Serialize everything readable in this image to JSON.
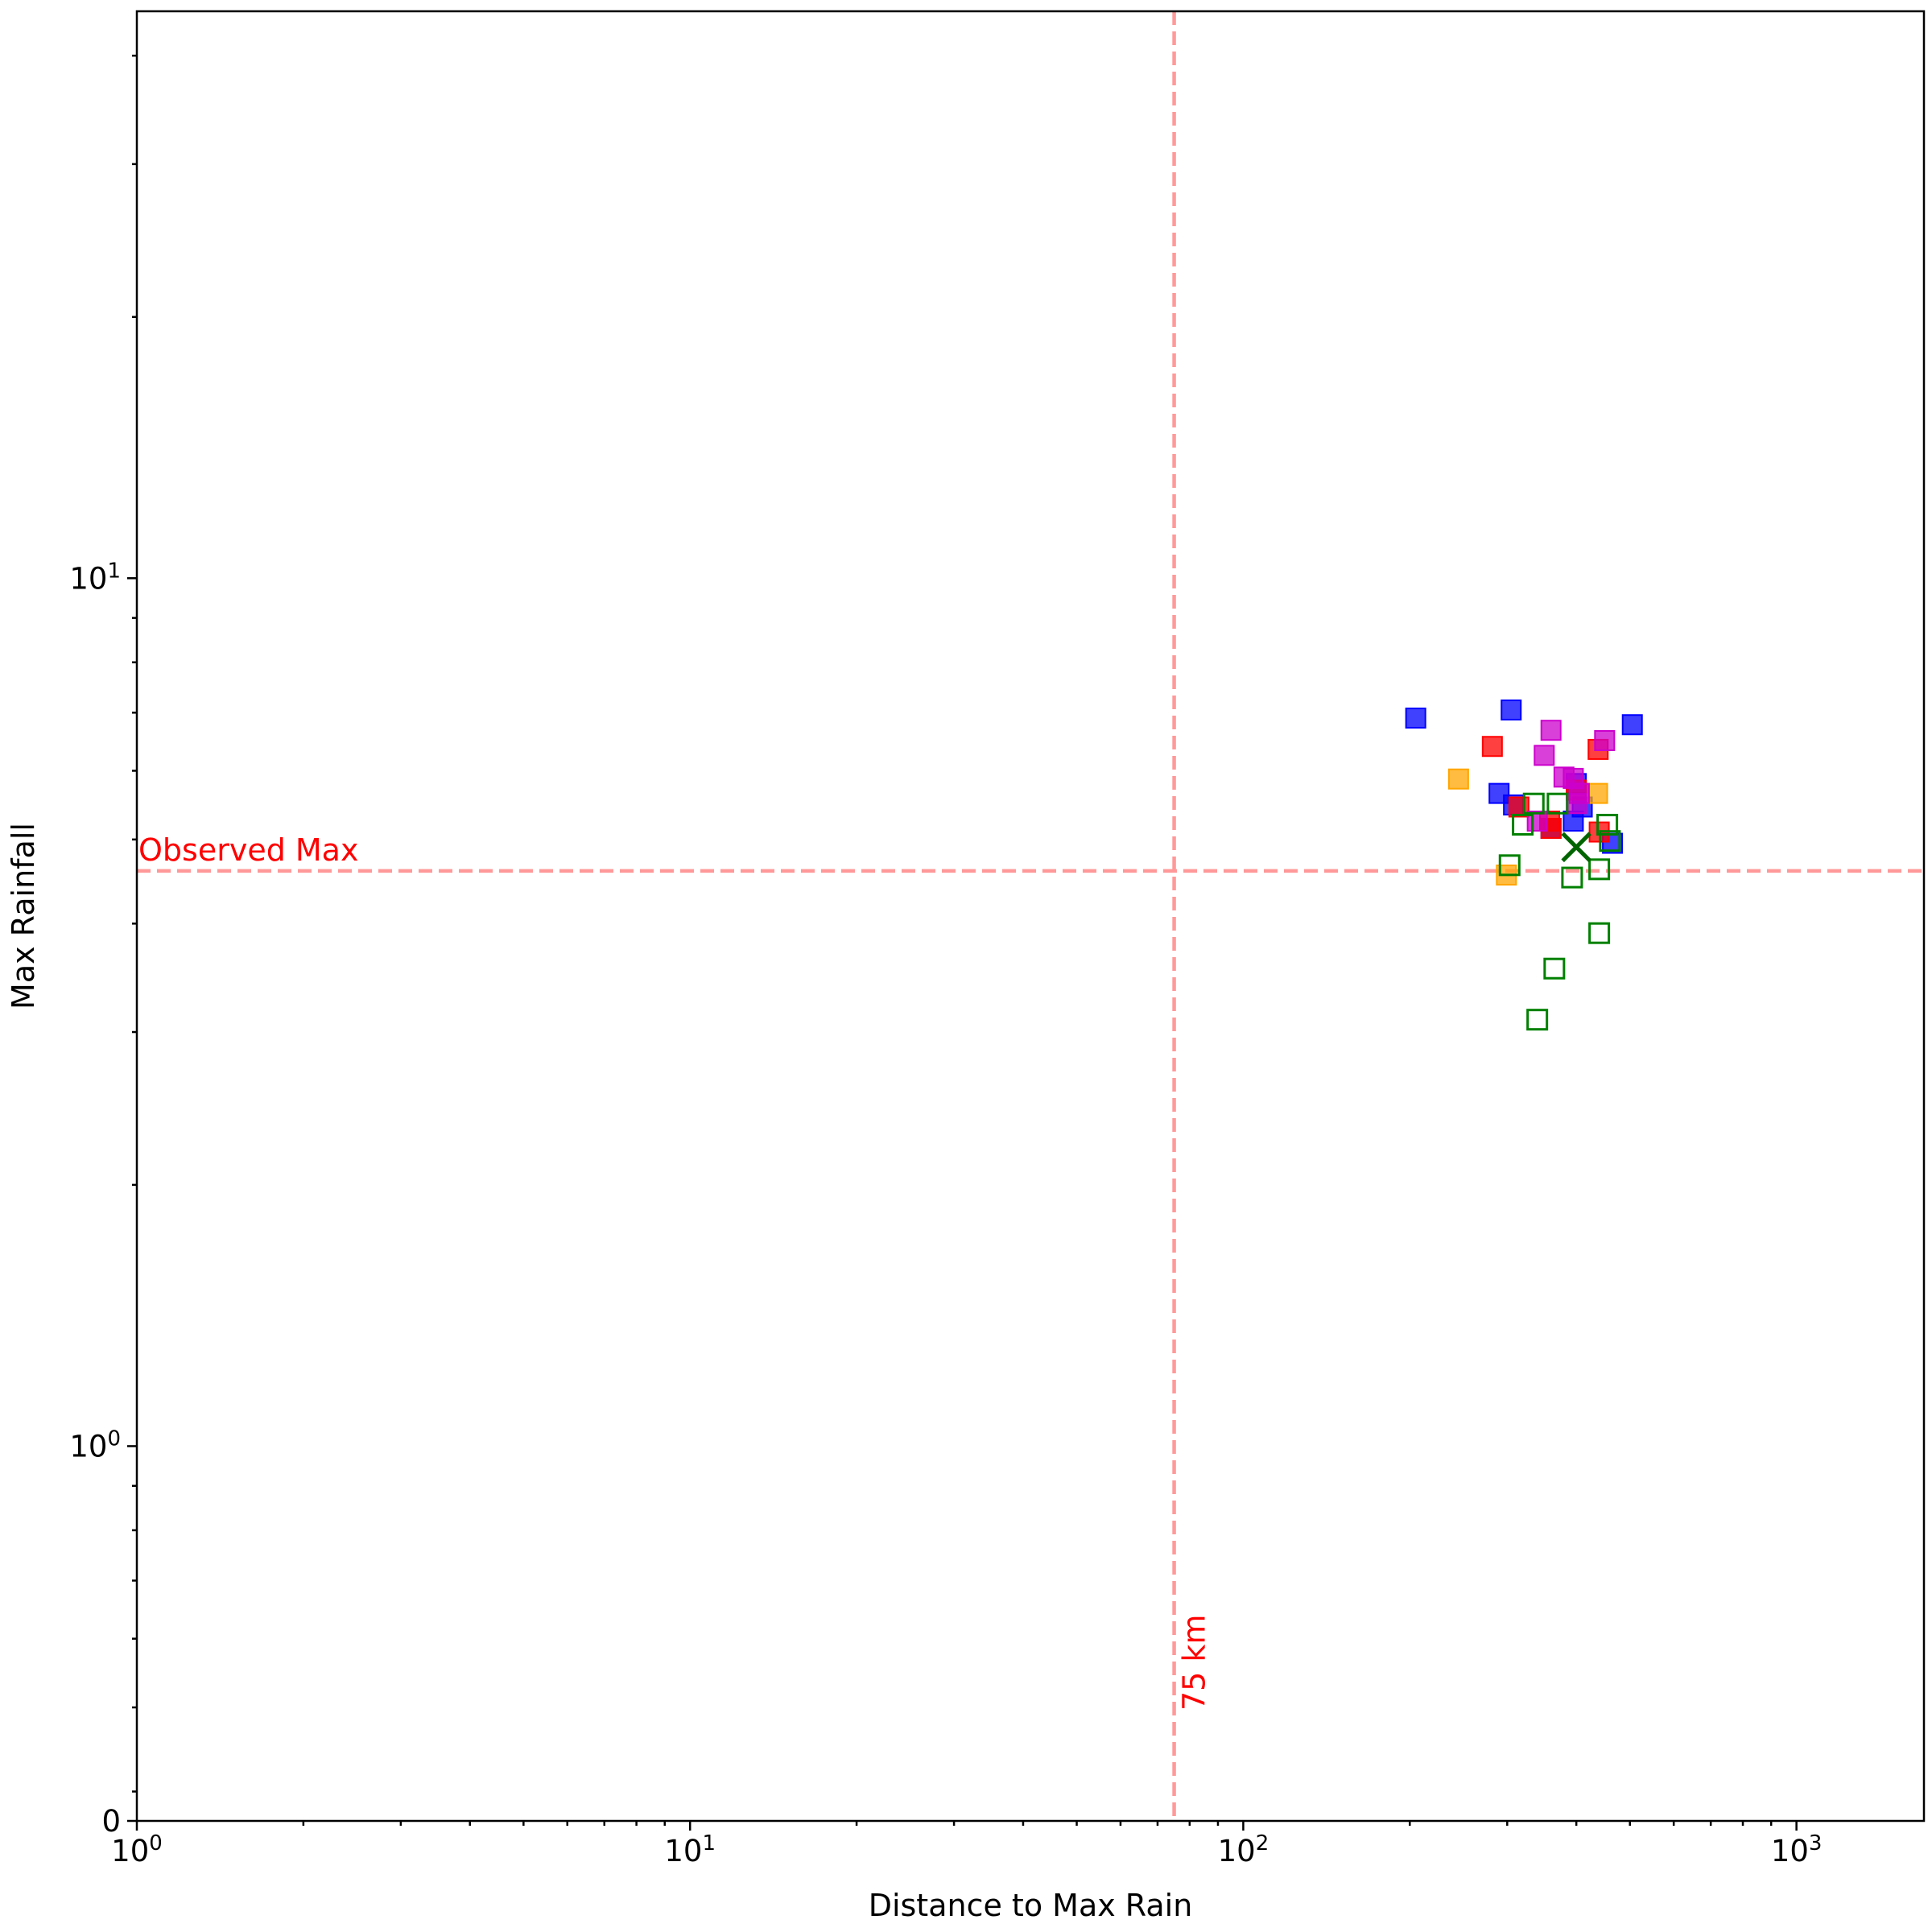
{
  "chart_data": {
    "type": "scatter",
    "xlabel": "Distance to Max Rain",
    "ylabel": "Max Rainfall",
    "xscale": "log",
    "yscale": "log",
    "xlim": [
      1,
      1700
    ],
    "ylim": [
      0.37,
      45
    ],
    "grid": false,
    "x_ticks": [
      {
        "value": 1,
        "base": "10",
        "exp": "0"
      },
      {
        "value": 10,
        "base": "10",
        "exp": "1"
      },
      {
        "value": 100,
        "base": "10",
        "exp": "2"
      },
      {
        "value": 1000,
        "base": "10",
        "exp": "3"
      }
    ],
    "y_ticks": [
      {
        "value": 1,
        "base": "10",
        "exp": "0"
      },
      {
        "value": 10,
        "base": "10",
        "exp": "1"
      }
    ],
    "y_zero_label": "0",
    "reference_lines": {
      "vertical": {
        "x": 75,
        "label": "75 km",
        "color": "#ff0000"
      },
      "horizontal": {
        "y": 4.6,
        "label": "Observed Max",
        "color": "#ff0000"
      }
    },
    "series": [
      {
        "marker": "filled-square",
        "color": "#0000ff",
        "points": [
          [
            205,
            6.9
          ],
          [
            305,
            7.05
          ],
          [
            505,
            6.78
          ],
          [
            308,
            5.48
          ],
          [
            465,
            4.95
          ],
          [
            290,
            5.65
          ],
          [
            395,
            5.25
          ],
          [
            410,
            5.45
          ],
          [
            400,
            5.8
          ],
          [
            360,
            5.15
          ]
        ]
      },
      {
        "marker": "filled-square",
        "color": "#ff0000",
        "points": [
          [
            282,
            6.4
          ],
          [
            438,
            6.35
          ],
          [
            360,
            5.15
          ],
          [
            358,
            5.25
          ],
          [
            315,
            5.45
          ],
          [
            440,
            5.1
          ],
          [
            400,
            5.7
          ]
        ]
      },
      {
        "marker": "filled-square",
        "color": "#ffa500",
        "points": [
          [
            245,
            5.87
          ],
          [
            437,
            5.65
          ],
          [
            299,
            4.55
          ]
        ]
      },
      {
        "marker": "filled-square",
        "color": "#cc00cc",
        "points": [
          [
            360,
            6.68
          ],
          [
            450,
            6.5
          ],
          [
            350,
            6.25
          ],
          [
            380,
            5.9
          ],
          [
            395,
            5.88
          ],
          [
            405,
            5.65
          ],
          [
            400,
            5.5
          ],
          [
            340,
            5.25
          ]
        ]
      },
      {
        "marker": "open-square",
        "color": "#008000",
        "points": [
          [
            335,
            5.5
          ],
          [
            370,
            5.5
          ],
          [
            320,
            5.2
          ],
          [
            455,
            5.2
          ],
          [
            460,
            4.98
          ],
          [
            303,
            4.67
          ],
          [
            393,
            4.52
          ],
          [
            440,
            4.62
          ],
          [
            440,
            3.9
          ],
          [
            365,
            3.55
          ],
          [
            340,
            3.1
          ]
        ]
      },
      {
        "marker": "x",
        "color": "#006400",
        "points": [
          [
            400,
            4.9
          ]
        ]
      }
    ]
  }
}
